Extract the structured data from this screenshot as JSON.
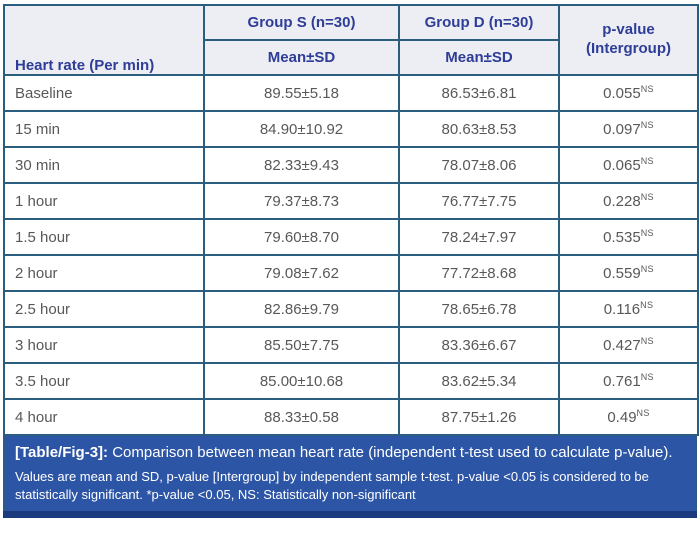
{
  "table": {
    "columns": {
      "row_header": "Heart rate (Per min)",
      "groups": [
        {
          "name": "Group S (n=30)",
          "sub": "Mean±SD"
        },
        {
          "name": "Group D (n=30)",
          "sub": "Mean±SD"
        }
      ],
      "pvalue": {
        "line1": "p-value",
        "line2": "(Intergroup)"
      }
    },
    "rows": [
      {
        "label": "Baseline",
        "group_s": "89.55±5.18",
        "group_d": "86.53±6.81",
        "p": "0.055",
        "p_sup": "NS"
      },
      {
        "label": "15 min",
        "group_s": "84.90±10.92",
        "group_d": "80.63±8.53",
        "p": "0.097",
        "p_sup": "NS"
      },
      {
        "label": "30 min",
        "group_s": "82.33±9.43",
        "group_d": "78.07±8.06",
        "p": "0.065",
        "p_sup": "NS"
      },
      {
        "label": "1 hour",
        "group_s": "79.37±8.73",
        "group_d": "76.77±7.75",
        "p": "0.228",
        "p_sup": "NS"
      },
      {
        "label": "1.5 hour",
        "group_s": "79.60±8.70",
        "group_d": "78.24±7.97",
        "p": "0.535",
        "p_sup": "NS"
      },
      {
        "label": "2 hour",
        "group_s": "79.08±7.62",
        "group_d": "77.72±8.68",
        "p": "0.559",
        "p_sup": "NS"
      },
      {
        "label": "2.5 hour",
        "group_s": "82.86±9.79",
        "group_d": "78.65±6.78",
        "p": "0.116",
        "p_sup": "NS"
      },
      {
        "label": "3 hour",
        "group_s": "85.50±7.75",
        "group_d": "83.36±6.67",
        "p": "0.427",
        "p_sup": "NS"
      },
      {
        "label": "3.5 hour",
        "group_s": "85.00±10.68",
        "group_d": "83.62±5.34",
        "p": "0.761",
        "p_sup": "NS"
      },
      {
        "label": "4 hour",
        "group_s": "88.33±0.58",
        "group_d": "87.75±1.26",
        "p": "0.49",
        "p_sup": "NS"
      }
    ]
  },
  "caption": {
    "tag": "[Table/Fig-3]:",
    "text": " Comparison between mean heart rate (independent t-test used to calculate p-value).",
    "footnote": "Values are mean and SD, p-value [Intergroup] by independent sample t-test. p-value <0.05 is considered to be statistically significant. *p-value <0.05, NS: Statistically non-significant"
  },
  "colors": {
    "border": "#2b5d7e",
    "header_bg": "#ededf4",
    "header_text": "#2e3d96",
    "body_text": "#57585a",
    "caption_bg": "#2d55a5",
    "caption_text": "#ffffff",
    "bottom_strip": "#1a3a7d"
  }
}
